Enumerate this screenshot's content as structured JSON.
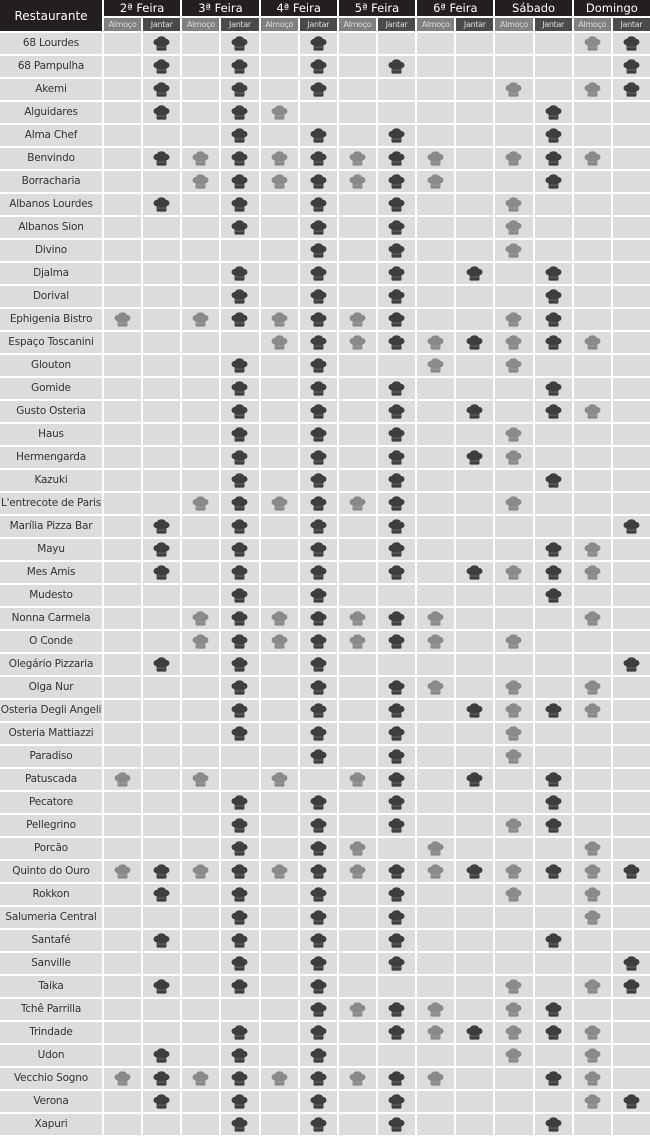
{
  "header": {
    "restaurant_label": "Restaurante",
    "days": [
      "2ª Feira",
      "3ª Feira",
      "4ª Feira",
      "5ª Feira",
      "6ª Feira",
      "Sábado",
      "Domingo"
    ],
    "lunch_label": "Almoço",
    "dinner_label": "Jantar"
  },
  "colors": {
    "header_bg": "#231f20",
    "lunch_icon": "#8a8a8a",
    "dinner_icon": "#3e3e40",
    "cell_bg": "#dcdcdd"
  },
  "icon": "chef-hat-icon",
  "columns_order": [
    "2ª Feira Almoço",
    "2ª Feira Jantar",
    "3ª Feira Almoço",
    "3ª Feira Jantar",
    "4ª Feira Almoço",
    "4ª Feira Jantar",
    "5ª Feira Almoço",
    "5ª Feira Jantar",
    "6ª Feira Almoço",
    "6ª Feira Jantar",
    "Sábado Almoço",
    "Sábado Jantar",
    "Domingo Almoço",
    "Domingo Jantar"
  ],
  "rows": [
    {
      "name": "68 Lourdes",
      "open": [
        0,
        1,
        0,
        1,
        0,
        1,
        0,
        0,
        0,
        0,
        0,
        0,
        1,
        1
      ]
    },
    {
      "name": "68 Pampulha",
      "open": [
        0,
        1,
        0,
        1,
        0,
        1,
        0,
        1,
        0,
        0,
        0,
        0,
        0,
        1
      ]
    },
    {
      "name": "Akemi",
      "open": [
        0,
        1,
        0,
        1,
        0,
        1,
        0,
        0,
        0,
        0,
        1,
        0,
        1,
        1
      ]
    },
    {
      "name": "Alguidares",
      "open": [
        0,
        1,
        0,
        1,
        1,
        0,
        0,
        0,
        0,
        0,
        0,
        1,
        0,
        0
      ]
    },
    {
      "name": "Alma Chef",
      "open": [
        0,
        0,
        0,
        1,
        0,
        1,
        0,
        1,
        0,
        0,
        0,
        1,
        0,
        0
      ]
    },
    {
      "name": "Benvindo",
      "open": [
        0,
        1,
        1,
        1,
        1,
        1,
        1,
        1,
        1,
        0,
        1,
        1,
        1,
        0
      ]
    },
    {
      "name": "Borracharia",
      "open": [
        0,
        0,
        1,
        1,
        1,
        1,
        1,
        1,
        1,
        0,
        0,
        1,
        0,
        0
      ]
    },
    {
      "name": "Albanos Lourdes",
      "open": [
        0,
        1,
        0,
        1,
        0,
        1,
        0,
        1,
        0,
        0,
        1,
        0,
        0,
        0
      ]
    },
    {
      "name": "Albanos Sion",
      "open": [
        0,
        0,
        0,
        1,
        0,
        1,
        0,
        1,
        0,
        0,
        1,
        0,
        0,
        0
      ]
    },
    {
      "name": "Divino",
      "open": [
        0,
        0,
        0,
        0,
        0,
        1,
        0,
        1,
        0,
        0,
        1,
        0,
        0,
        0
      ]
    },
    {
      "name": "Djalma",
      "open": [
        0,
        0,
        0,
        1,
        0,
        1,
        0,
        1,
        0,
        1,
        0,
        1,
        0,
        0
      ]
    },
    {
      "name": "Dorival",
      "open": [
        0,
        0,
        0,
        1,
        0,
        1,
        0,
        1,
        0,
        0,
        0,
        1,
        0,
        0
      ]
    },
    {
      "name": "Ephigenia Bistro",
      "open": [
        1,
        0,
        1,
        1,
        1,
        1,
        1,
        1,
        0,
        0,
        1,
        1,
        0,
        0
      ]
    },
    {
      "name": "Espaço Toscanini",
      "open": [
        0,
        0,
        0,
        0,
        1,
        1,
        1,
        1,
        1,
        1,
        1,
        1,
        1,
        0
      ]
    },
    {
      "name": "Glouton",
      "open": [
        0,
        0,
        0,
        1,
        0,
        1,
        0,
        0,
        1,
        0,
        1,
        0,
        0,
        0
      ]
    },
    {
      "name": "Gomide",
      "open": [
        0,
        0,
        0,
        1,
        0,
        1,
        0,
        1,
        0,
        0,
        0,
        1,
        0,
        0
      ]
    },
    {
      "name": "Gusto Osteria",
      "open": [
        0,
        0,
        0,
        1,
        0,
        1,
        0,
        1,
        0,
        1,
        0,
        1,
        1,
        0
      ]
    },
    {
      "name": "Haus",
      "open": [
        0,
        0,
        0,
        1,
        0,
        1,
        0,
        1,
        0,
        0,
        1,
        0,
        0,
        0
      ]
    },
    {
      "name": "Hermengarda",
      "open": [
        0,
        0,
        0,
        1,
        0,
        1,
        0,
        1,
        0,
        1,
        1,
        0,
        0,
        0
      ]
    },
    {
      "name": "Kazuki",
      "open": [
        0,
        0,
        0,
        1,
        0,
        1,
        0,
        1,
        0,
        0,
        0,
        1,
        0,
        0
      ]
    },
    {
      "name": "L'entrecote de Paris",
      "open": [
        0,
        0,
        1,
        1,
        1,
        1,
        1,
        1,
        0,
        0,
        1,
        0,
        0,
        0
      ]
    },
    {
      "name": "Marília Pizza Bar",
      "open": [
        0,
        1,
        0,
        1,
        0,
        1,
        0,
        1,
        0,
        0,
        0,
        0,
        0,
        1
      ]
    },
    {
      "name": "Mayu",
      "open": [
        0,
        1,
        0,
        1,
        0,
        1,
        0,
        1,
        0,
        0,
        0,
        1,
        1,
        0
      ]
    },
    {
      "name": "Mes Amis",
      "open": [
        0,
        1,
        0,
        1,
        0,
        1,
        0,
        1,
        0,
        1,
        1,
        1,
        1,
        0
      ]
    },
    {
      "name": "Mudesto",
      "open": [
        0,
        0,
        0,
        1,
        0,
        1,
        0,
        0,
        0,
        0,
        0,
        1,
        0,
        0
      ]
    },
    {
      "name": "Nonna Carmela",
      "open": [
        0,
        0,
        1,
        1,
        1,
        1,
        1,
        1,
        1,
        0,
        0,
        0,
        1,
        0
      ]
    },
    {
      "name": "O Conde",
      "open": [
        0,
        0,
        1,
        1,
        1,
        1,
        1,
        1,
        1,
        0,
        1,
        0,
        0,
        0
      ]
    },
    {
      "name": "Olegário Pizzaria",
      "open": [
        0,
        1,
        0,
        1,
        0,
        1,
        0,
        0,
        0,
        0,
        0,
        0,
        0,
        1
      ]
    },
    {
      "name": "Olga Nur",
      "open": [
        0,
        0,
        0,
        1,
        0,
        1,
        0,
        1,
        1,
        0,
        1,
        0,
        1,
        0
      ]
    },
    {
      "name": "Osteria Degli Angeli",
      "open": [
        0,
        0,
        0,
        1,
        0,
        1,
        0,
        1,
        0,
        1,
        1,
        1,
        1,
        0
      ]
    },
    {
      "name": "Osteria Mattiazzi",
      "open": [
        0,
        0,
        0,
        1,
        0,
        1,
        0,
        1,
        0,
        0,
        1,
        0,
        0,
        0
      ]
    },
    {
      "name": "Paradiso",
      "open": [
        0,
        0,
        0,
        0,
        0,
        1,
        0,
        1,
        0,
        0,
        1,
        0,
        0,
        0
      ]
    },
    {
      "name": "Patuscada",
      "open": [
        1,
        0,
        1,
        0,
        1,
        0,
        1,
        1,
        0,
        1,
        0,
        1,
        0,
        0
      ]
    },
    {
      "name": "Pecatore",
      "open": [
        0,
        0,
        0,
        1,
        0,
        1,
        0,
        1,
        0,
        0,
        0,
        1,
        0,
        0
      ]
    },
    {
      "name": "Pellegrino",
      "open": [
        0,
        0,
        0,
        1,
        0,
        1,
        0,
        1,
        0,
        0,
        1,
        1,
        0,
        0
      ]
    },
    {
      "name": "Porcão",
      "open": [
        0,
        0,
        0,
        1,
        0,
        1,
        1,
        0,
        1,
        0,
        0,
        0,
        1,
        0
      ]
    },
    {
      "name": "Quinto do Ouro",
      "open": [
        1,
        1,
        1,
        1,
        1,
        1,
        1,
        1,
        1,
        1,
        1,
        1,
        1,
        1
      ]
    },
    {
      "name": "Rokkon",
      "open": [
        0,
        1,
        0,
        1,
        0,
        1,
        0,
        1,
        0,
        0,
        1,
        0,
        1,
        0
      ]
    },
    {
      "name": "Salumeria Central",
      "open": [
        0,
        0,
        0,
        1,
        0,
        1,
        0,
        1,
        0,
        0,
        0,
        0,
        1,
        0
      ]
    },
    {
      "name": "Santafé",
      "open": [
        0,
        1,
        0,
        1,
        0,
        1,
        0,
        1,
        0,
        0,
        0,
        1,
        0,
        0
      ]
    },
    {
      "name": "Sanville",
      "open": [
        0,
        0,
        0,
        1,
        0,
        1,
        0,
        1,
        0,
        0,
        0,
        0,
        0,
        1
      ]
    },
    {
      "name": "Taika",
      "open": [
        0,
        1,
        0,
        1,
        0,
        1,
        0,
        0,
        0,
        0,
        1,
        0,
        1,
        1
      ]
    },
    {
      "name": "Tchê Parrilla",
      "open": [
        0,
        0,
        0,
        0,
        0,
        1,
        1,
        1,
        1,
        0,
        1,
        1,
        0,
        0
      ]
    },
    {
      "name": "Trindade",
      "open": [
        0,
        0,
        0,
        1,
        0,
        1,
        0,
        1,
        1,
        1,
        1,
        1,
        1,
        0
      ]
    },
    {
      "name": "Udon",
      "open": [
        0,
        1,
        0,
        1,
        0,
        1,
        0,
        0,
        0,
        0,
        1,
        0,
        1,
        0
      ]
    },
    {
      "name": "Vecchio Sogno",
      "open": [
        1,
        1,
        1,
        1,
        1,
        1,
        1,
        1,
        1,
        0,
        0,
        1,
        1,
        0
      ]
    },
    {
      "name": "Verona",
      "open": [
        0,
        1,
        0,
        1,
        0,
        1,
        0,
        1,
        0,
        0,
        0,
        0,
        1,
        1
      ]
    },
    {
      "name": "Xapuri",
      "open": [
        0,
        0,
        0,
        1,
        0,
        1,
        0,
        1,
        0,
        0,
        0,
        1,
        0,
        0
      ]
    }
  ]
}
